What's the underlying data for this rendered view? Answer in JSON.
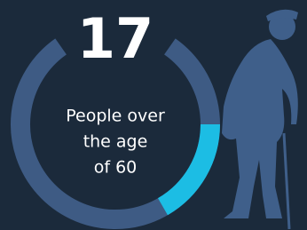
{
  "stat": {
    "value": "17",
    "label_lines": [
      "People over",
      "the age",
      "of 60"
    ]
  }
}
